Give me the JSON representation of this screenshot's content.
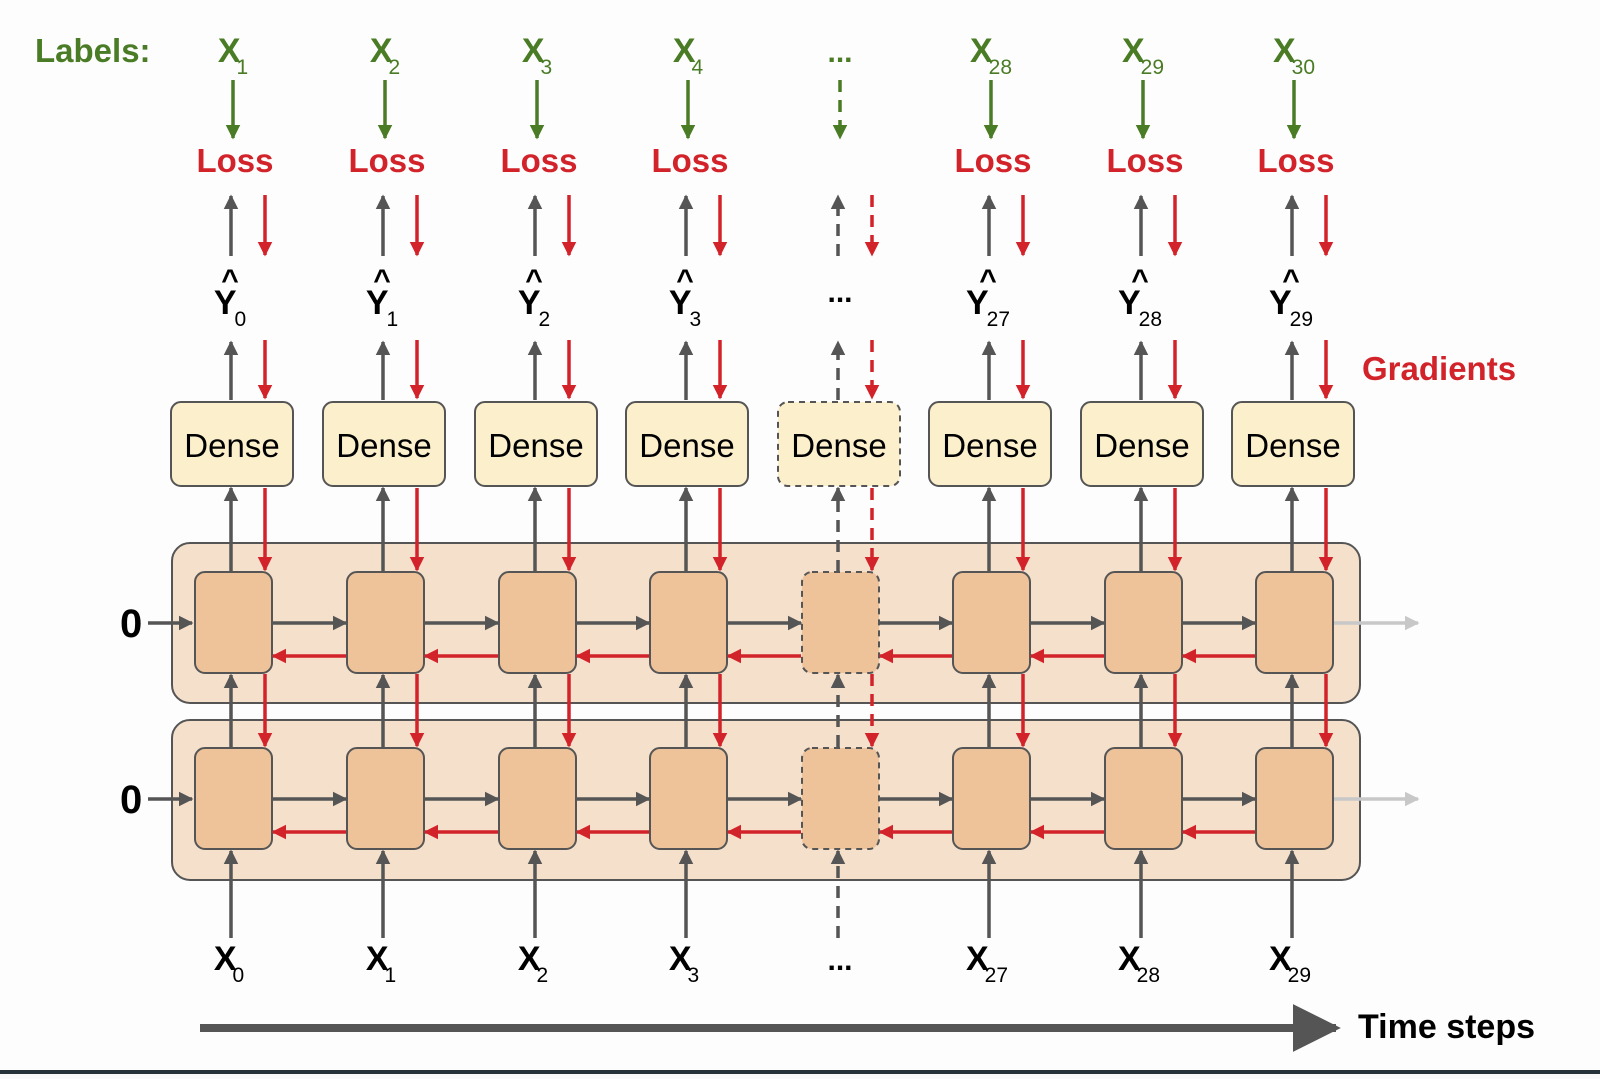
{
  "labels_heading": "Labels:",
  "loss_label": "Loss",
  "gradients_label": "Gradients",
  "dense_label": "Dense",
  "initial_state": "0",
  "time_steps_label": "Time steps",
  "ellipsis": "...",
  "columns": [
    {
      "label_base": "X",
      "label_sub": "1",
      "pred_base": "Y",
      "pred_sub": "0",
      "input_base": "X",
      "input_sub": "0",
      "elided": false
    },
    {
      "label_base": "X",
      "label_sub": "2",
      "pred_base": "Y",
      "pred_sub": "1",
      "input_base": "X",
      "input_sub": "1",
      "elided": false
    },
    {
      "label_base": "X",
      "label_sub": "3",
      "pred_base": "Y",
      "pred_sub": "2",
      "input_base": "X",
      "input_sub": "2",
      "elided": false
    },
    {
      "label_base": "X",
      "label_sub": "4",
      "pred_base": "Y",
      "pred_sub": "3",
      "input_base": "X",
      "input_sub": "3",
      "elided": false
    },
    {
      "elided": true
    },
    {
      "label_base": "X",
      "label_sub": "28",
      "pred_base": "Y",
      "pred_sub": "27",
      "input_base": "X",
      "input_sub": "27",
      "elided": false
    },
    {
      "label_base": "X",
      "label_sub": "29",
      "pred_base": "Y",
      "pred_sub": "28",
      "input_base": "X",
      "input_sub": "28",
      "elided": false
    },
    {
      "label_base": "X",
      "label_sub": "30",
      "pred_base": "Y",
      "pred_sub": "29",
      "input_base": "X",
      "input_sub": "29",
      "elided": false
    }
  ],
  "colors": {
    "label_green": "#4a7b25",
    "loss_red": "#d3232a",
    "arrow_gray": "#555555",
    "faded_arrow": "#c8c8c8",
    "dense_fill": "#fbefcc",
    "layer_fill": "#f5e0cc",
    "cell_fill": "#efc39a"
  }
}
